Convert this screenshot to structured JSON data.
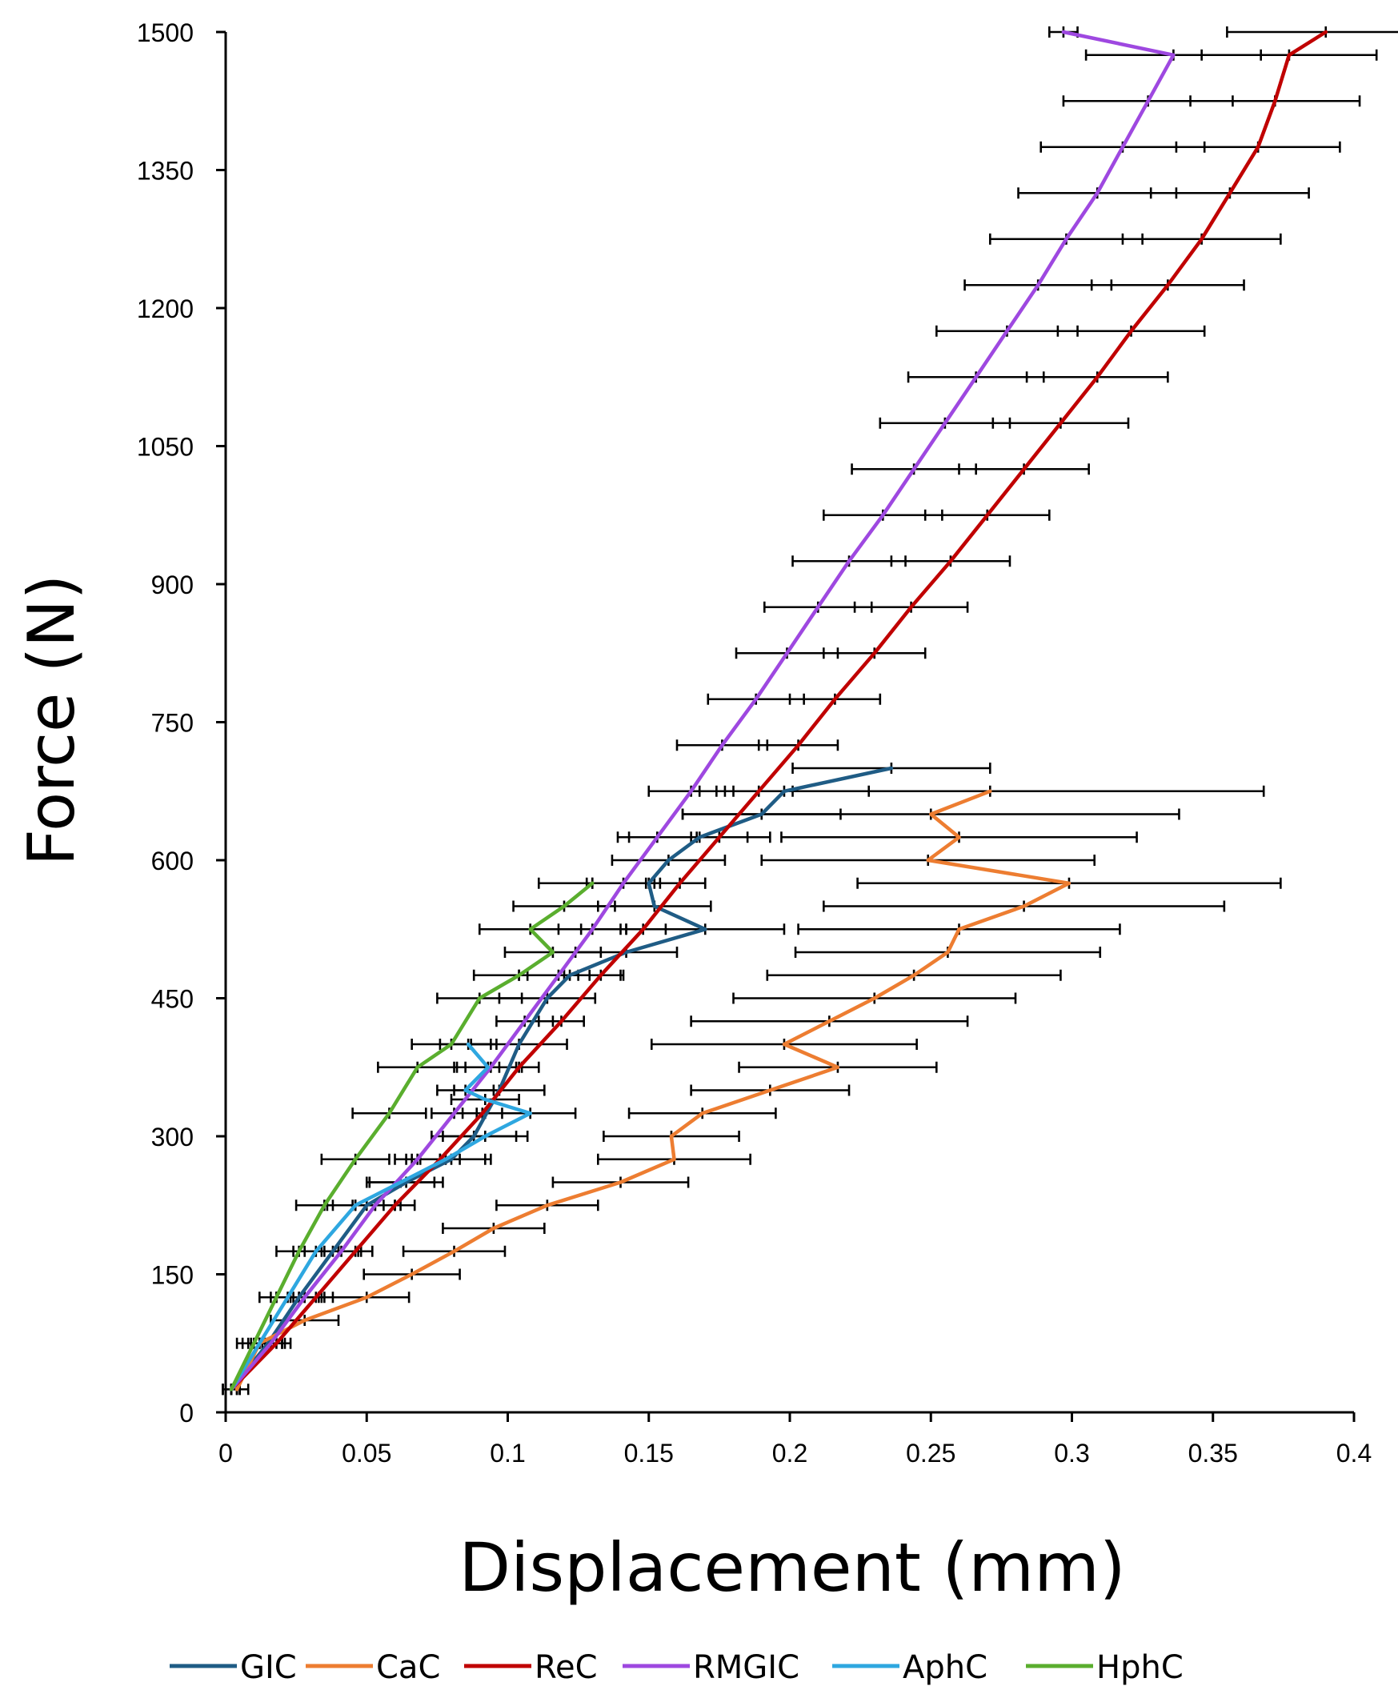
{
  "chart_data": {
    "type": "line",
    "xlabel": "Displacement (mm)",
    "ylabel": "Force (N)",
    "xlim": [
      0,
      0.4
    ],
    "ylim": [
      0,
      1500
    ],
    "xticks": [
      "0",
      "0.05",
      "0.1",
      "0.15",
      "0.2",
      "0.25",
      "0.3",
      "0.35",
      "0.4"
    ],
    "xtick_values": [
      0,
      0.05,
      0.1,
      0.15,
      0.2,
      0.25,
      0.3,
      0.35,
      0.4
    ],
    "yticks": [
      "0",
      "150",
      "300",
      "450",
      "600",
      "750",
      "900",
      "1050",
      "1200",
      "1350",
      "1500"
    ],
    "ytick_values": [
      0,
      150,
      300,
      450,
      600,
      750,
      900,
      1050,
      1200,
      1350,
      1500
    ],
    "legend_position": "bottom",
    "series": [
      {
        "name": "GIC",
        "color": "#1F5C85",
        "points": [
          [
            0.002,
            25
          ],
          [
            0.015,
            75
          ],
          [
            0.026,
            125
          ],
          [
            0.038,
            175
          ],
          [
            0.05,
            225
          ],
          [
            0.064,
            250
          ],
          [
            0.08,
            275
          ],
          [
            0.088,
            300
          ],
          [
            0.097,
            350
          ],
          [
            0.104,
            400
          ],
          [
            0.114,
            450
          ],
          [
            0.122,
            475
          ],
          [
            0.142,
            500
          ],
          [
            0.17,
            525
          ],
          [
            0.152,
            550
          ],
          [
            0.15,
            575
          ],
          [
            0.157,
            600
          ],
          [
            0.168,
            625
          ],
          [
            0.19,
            650
          ],
          [
            0.198,
            675
          ],
          [
            0.236,
            700
          ]
        ],
        "errors": [
          0.003,
          0.006,
          0.008,
          0.01,
          0.012,
          0.013,
          0.014,
          0.015,
          0.016,
          0.017,
          0.017,
          0.018,
          0.018,
          0.028,
          0.02,
          0.02,
          0.02,
          0.025,
          0.028,
          0.03,
          0.035
        ]
      },
      {
        "name": "CaC",
        "color": "#ED7D31",
        "points": [
          [
            0.004,
            25
          ],
          [
            0.012,
            75
          ],
          [
            0.028,
            100
          ],
          [
            0.05,
            125
          ],
          [
            0.066,
            150
          ],
          [
            0.081,
            175
          ],
          [
            0.095,
            200
          ],
          [
            0.114,
            225
          ],
          [
            0.14,
            250
          ],
          [
            0.159,
            275
          ],
          [
            0.158,
            300
          ],
          [
            0.169,
            325
          ],
          [
            0.193,
            350
          ],
          [
            0.217,
            375
          ],
          [
            0.198,
            400
          ],
          [
            0.214,
            425
          ],
          [
            0.23,
            450
          ],
          [
            0.244,
            475
          ],
          [
            0.256,
            500
          ],
          [
            0.26,
            525
          ],
          [
            0.283,
            550
          ],
          [
            0.299,
            575
          ],
          [
            0.249,
            600
          ],
          [
            0.26,
            625
          ],
          [
            0.25,
            650
          ],
          [
            0.271,
            675
          ]
        ],
        "errors": [
          0.004,
          0.008,
          0.012,
          0.015,
          0.017,
          0.018,
          0.018,
          0.018,
          0.024,
          0.027,
          0.024,
          0.026,
          0.028,
          0.035,
          0.047,
          0.049,
          0.05,
          0.052,
          0.054,
          0.057,
          0.071,
          0.075,
          0.059,
          0.063,
          0.088,
          0.097
        ]
      },
      {
        "name": "ReC",
        "color": "#C00000",
        "points": [
          [
            0.002,
            25
          ],
          [
            0.018,
            75
          ],
          [
            0.032,
            125
          ],
          [
            0.046,
            175
          ],
          [
            0.06,
            225
          ],
          [
            0.076,
            275
          ],
          [
            0.091,
            325
          ],
          [
            0.104,
            375
          ],
          [
            0.119,
            425
          ],
          [
            0.133,
            475
          ],
          [
            0.148,
            525
          ],
          [
            0.161,
            575
          ],
          [
            0.175,
            625
          ],
          [
            0.189,
            675
          ],
          [
            0.203,
            725
          ],
          [
            0.216,
            775
          ],
          [
            0.23,
            825
          ],
          [
            0.243,
            875
          ],
          [
            0.257,
            925
          ],
          [
            0.27,
            975
          ],
          [
            0.283,
            1025
          ],
          [
            0.296,
            1075
          ],
          [
            0.309,
            1125
          ],
          [
            0.321,
            1175
          ],
          [
            0.334,
            1225
          ],
          [
            0.346,
            1275
          ],
          [
            0.356,
            1325
          ],
          [
            0.366,
            1375
          ],
          [
            0.372,
            1425
          ],
          [
            0.377,
            1475
          ],
          [
            0.39,
            1500
          ]
        ],
        "errors": [
          0.003,
          0.005,
          0.006,
          0.006,
          0.007,
          0.007,
          0.007,
          0.007,
          0.008,
          0.008,
          0.008,
          0.009,
          0.01,
          0.012,
          0.014,
          0.016,
          0.018,
          0.02,
          0.021,
          0.022,
          0.023,
          0.024,
          0.025,
          0.026,
          0.027,
          0.028,
          0.028,
          0.029,
          0.03,
          0.031,
          0.035
        ]
      },
      {
        "name": "RMGIC",
        "color": "#9E48E0",
        "points": [
          [
            0.002,
            25
          ],
          [
            0.016,
            75
          ],
          [
            0.028,
            125
          ],
          [
            0.041,
            175
          ],
          [
            0.053,
            225
          ],
          [
            0.068,
            275
          ],
          [
            0.081,
            325
          ],
          [
            0.094,
            375
          ],
          [
            0.106,
            425
          ],
          [
            0.118,
            475
          ],
          [
            0.13,
            525
          ],
          [
            0.141,
            575
          ],
          [
            0.153,
            625
          ],
          [
            0.165,
            675
          ],
          [
            0.176,
            725
          ],
          [
            0.188,
            775
          ],
          [
            0.199,
            825
          ],
          [
            0.21,
            875
          ],
          [
            0.221,
            925
          ],
          [
            0.233,
            975
          ],
          [
            0.244,
            1025
          ],
          [
            0.255,
            1075
          ],
          [
            0.266,
            1125
          ],
          [
            0.277,
            1175
          ],
          [
            0.288,
            1225
          ],
          [
            0.298,
            1275
          ],
          [
            0.309,
            1325
          ],
          [
            0.318,
            1375
          ],
          [
            0.327,
            1425
          ],
          [
            0.336,
            1475
          ],
          [
            0.297,
            1500
          ]
        ],
        "errors": [
          0.003,
          0.004,
          0.005,
          0.006,
          0.007,
          0.008,
          0.008,
          0.009,
          0.01,
          0.011,
          0.012,
          0.013,
          0.014,
          0.015,
          0.016,
          0.017,
          0.018,
          0.019,
          0.02,
          0.021,
          0.022,
          0.023,
          0.024,
          0.025,
          0.026,
          0.027,
          0.028,
          0.029,
          0.03,
          0.031,
          0.005
        ]
      },
      {
        "name": "AphC",
        "color": "#2EA7E0",
        "points": [
          [
            0.002,
            25
          ],
          [
            0.012,
            75
          ],
          [
            0.022,
            125
          ],
          [
            0.032,
            175
          ],
          [
            0.046,
            225
          ],
          [
            0.062,
            250
          ],
          [
            0.078,
            275
          ],
          [
            0.092,
            300
          ],
          [
            0.108,
            325
          ],
          [
            0.092,
            340
          ],
          [
            0.085,
            350
          ],
          [
            0.093,
            375
          ],
          [
            0.086,
            400
          ]
        ],
        "errors": [
          0.002,
          0.004,
          0.006,
          0.008,
          0.01,
          0.012,
          0.014,
          0.015,
          0.016,
          0.012,
          0.01,
          0.012,
          0.01
        ]
      },
      {
        "name": "HphC",
        "color": "#5AAE2E",
        "points": [
          [
            0.002,
            25
          ],
          [
            0.01,
            75
          ],
          [
            0.018,
            125
          ],
          [
            0.026,
            175
          ],
          [
            0.035,
            225
          ],
          [
            0.046,
            275
          ],
          [
            0.058,
            325
          ],
          [
            0.068,
            375
          ],
          [
            0.08,
            400
          ],
          [
            0.09,
            450
          ],
          [
            0.104,
            475
          ],
          [
            0.116,
            500
          ],
          [
            0.108,
            525
          ],
          [
            0.12,
            550
          ],
          [
            0.13,
            575
          ]
        ],
        "errors": [
          0.002,
          0.004,
          0.006,
          0.008,
          0.01,
          0.012,
          0.013,
          0.014,
          0.014,
          0.015,
          0.016,
          0.017,
          0.018,
          0.018,
          0.019
        ]
      }
    ]
  }
}
